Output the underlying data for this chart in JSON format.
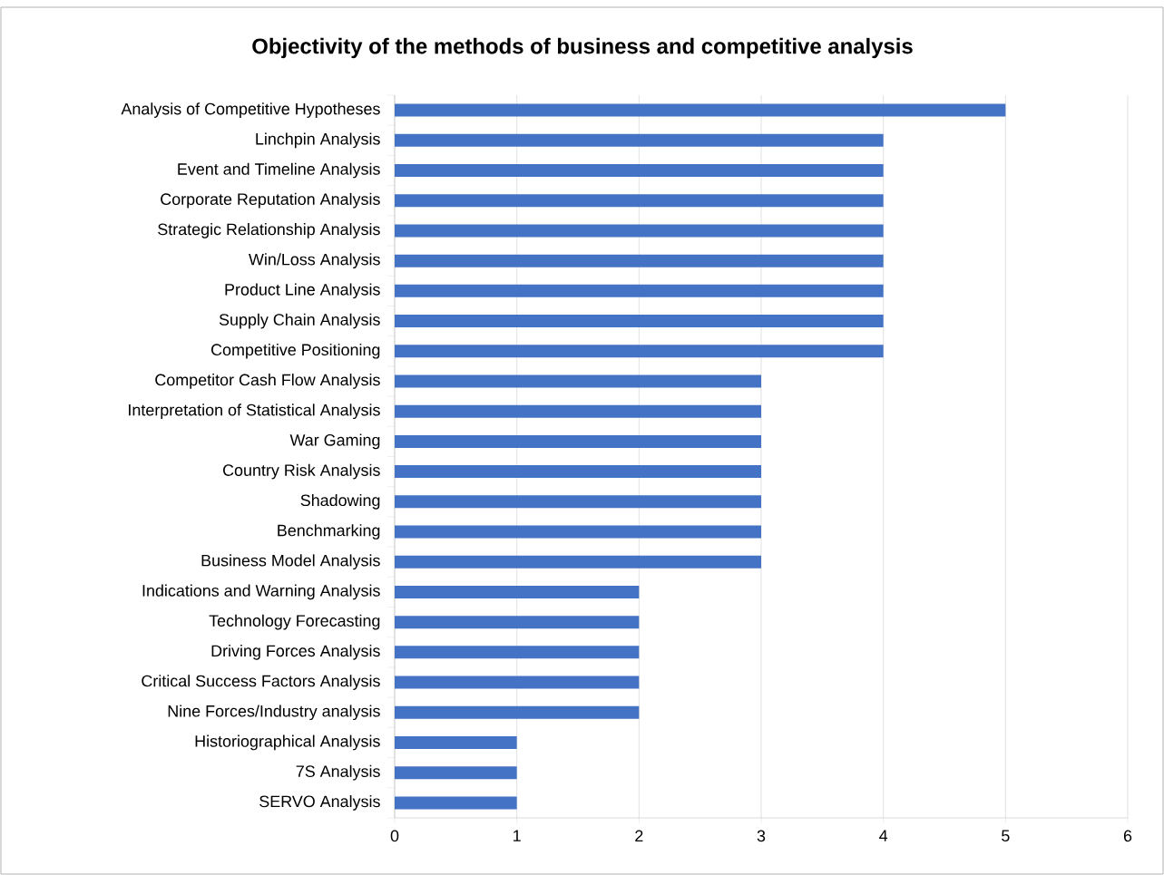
{
  "chart_data": {
    "type": "bar",
    "orientation": "horizontal",
    "title": "Objectivity of the methods of business and competitive analysis",
    "categories": [
      "Analysis of Competitive Hypotheses",
      "Linchpin Analysis",
      "Event and Timeline Analysis",
      "Corporate Reputation Analysis",
      "Strategic Relationship Analysis",
      "Win/Loss Analysis",
      "Product Line Analysis",
      "Supply Chain Analysis",
      "Competitive Positioning",
      "Competitor Cash Flow Analysis",
      "Interpretation of Statistical Analysis",
      "War Gaming",
      "Country Risk Analysis",
      "Shadowing",
      "Benchmarking",
      "Business Model Analysis",
      "Indications and Warning Analysis",
      "Technology Forecasting",
      "Driving Forces Analysis",
      "Critical Success Factors Analysis",
      "Nine Forces/Industry analysis",
      "Historiographical Analysis",
      "7S Analysis",
      "SERVO Analysis"
    ],
    "values": [
      5,
      4,
      4,
      4,
      4,
      4,
      4,
      4,
      4,
      3,
      3,
      3,
      3,
      3,
      3,
      3,
      2,
      2,
      2,
      2,
      2,
      1,
      1,
      1
    ],
    "color": "#4472c4",
    "xlim": [
      0,
      6
    ],
    "xticks": [
      0,
      1,
      2,
      3,
      4,
      5,
      6
    ],
    "grid": "x"
  }
}
